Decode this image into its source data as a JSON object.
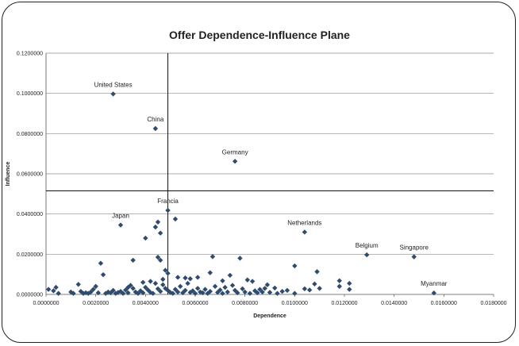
{
  "chart_data": {
    "type": "scatter",
    "title": "Offer Dependence-Influence Plane",
    "xlabel": "Dependence",
    "ylabel": "Influence",
    "xlim": [
      0,
      0.018
    ],
    "ylim": [
      0,
      0.12
    ],
    "x_ticks": [
      "0.0000000",
      "0.0020000",
      "0.0040000",
      "0.0060000",
      "0.0080000",
      "0.0100000",
      "0.0120000",
      "0.0140000",
      "0.0160000",
      "0.0180000"
    ],
    "y_ticks": [
      "0.0000000",
      "0.0200000",
      "0.0400000",
      "0.0600000",
      "0.0800000",
      "0.1000000",
      "0.1200000"
    ],
    "grid": "horizontal",
    "reference_lines": {
      "x": 0.0049,
      "y": 0.0515
    },
    "marker_color": "#2f4b6e",
    "labeled_points": [
      {
        "label": "United States",
        "x": 0.0027,
        "y": 0.0997
      },
      {
        "label": "China",
        "x": 0.0044,
        "y": 0.0825
      },
      {
        "label": "Germany",
        "x": 0.0076,
        "y": 0.0662
      },
      {
        "label": "Japan",
        "x": 0.003,
        "y": 0.0345
      },
      {
        "label": "Francia",
        "x": 0.0049,
        "y": 0.0418
      },
      {
        "label": "Netherlands",
        "x": 0.0104,
        "y": 0.031
      },
      {
        "label": "Belgium",
        "x": 0.0129,
        "y": 0.0197
      },
      {
        "label": "Singapore",
        "x": 0.0148,
        "y": 0.0187
      },
      {
        "label": "Myanmar",
        "x": 0.0156,
        "y": 0.0007
      }
    ],
    "points": [
      [
        0.0052,
        0.0375
      ],
      [
        0.0045,
        0.036
      ],
      [
        0.0044,
        0.0335
      ],
      [
        0.0046,
        0.0305
      ],
      [
        0.004,
        0.028
      ],
      [
        0.0022,
        0.0155
      ],
      [
        0.0023,
        0.0098
      ],
      [
        0.0035,
        0.017
      ],
      [
        0.0045,
        0.0185
      ],
      [
        0.0046,
        0.017
      ],
      [
        0.0048,
        0.012
      ],
      [
        0.0049,
        0.0105
      ],
      [
        0.0053,
        0.0085
      ],
      [
        0.0056,
        0.0082
      ],
      [
        0.0058,
        0.0078
      ],
      [
        0.0067,
        0.0188
      ],
      [
        0.0078,
        0.018
      ],
      [
        0.0066,
        0.0108
      ],
      [
        0.0074,
        0.0095
      ],
      [
        0.0081,
        0.0072
      ],
      [
        0.0083,
        0.0065
      ],
      [
        0.01,
        0.0142
      ],
      [
        0.0109,
        0.0113
      ],
      [
        0.0108,
        0.0052
      ],
      [
        0.011,
        0.003
      ],
      [
        0.0118,
        0.0068
      ],
      [
        0.0118,
        0.004
      ],
      [
        0.0122,
        0.0055
      ],
      [
        0.0122,
        0.0025
      ],
      [
        0.0089,
        0.0048
      ],
      [
        0.0092,
        0.0032
      ],
      [
        0.0104,
        0.0028
      ],
      [
        0.0106,
        0.0022
      ],
      [
        0.01,
        0.0005
      ],
      [
        0.0095,
        0.0015
      ],
      [
        0.0001,
        0.0025
      ],
      [
        0.0003,
        0.0018
      ],
      [
        0.0004,
        0.0035
      ],
      [
        0.0005,
        0.0005
      ],
      [
        0.001,
        0.0012
      ],
      [
        0.0011,
        0.0005
      ],
      [
        0.0013,
        0.005
      ],
      [
        0.0014,
        0.0015
      ],
      [
        0.0015,
        0.0005
      ],
      [
        0.0016,
        0.0008
      ],
      [
        0.0017,
        0.0005
      ],
      [
        0.0018,
        0.0012
      ],
      [
        0.0019,
        0.0025
      ],
      [
        0.002,
        0.004
      ],
      [
        0.0021,
        0.0008
      ],
      [
        0.0024,
        0.0005
      ],
      [
        0.0025,
        0.0012
      ],
      [
        0.0026,
        0.0008
      ],
      [
        0.0027,
        0.002
      ],
      [
        0.0028,
        0.0005
      ],
      [
        0.0029,
        0.001
      ],
      [
        0.003,
        0.0015
      ],
      [
        0.0031,
        0.0005
      ],
      [
        0.0032,
        0.0022
      ],
      [
        0.0033,
        0.0008
      ],
      [
        0.0034,
        0.0045
      ],
      [
        0.0035,
        0.003
      ],
      [
        0.0036,
        0.0012
      ],
      [
        0.0037,
        0.0005
      ],
      [
        0.0038,
        0.0018
      ],
      [
        0.0039,
        0.0008
      ],
      [
        0.004,
        0.0035
      ],
      [
        0.0041,
        0.0022
      ],
      [
        0.0042,
        0.001
      ],
      [
        0.0043,
        0.0005
      ],
      [
        0.0044,
        0.0055
      ],
      [
        0.0045,
        0.0028
      ],
      [
        0.0046,
        0.0015
      ],
      [
        0.0047,
        0.0048
      ],
      [
        0.0048,
        0.003
      ],
      [
        0.0049,
        0.002
      ],
      [
        0.005,
        0.001
      ],
      [
        0.0051,
        0.0005
      ],
      [
        0.0052,
        0.0025
      ],
      [
        0.0053,
        0.0012
      ],
      [
        0.0054,
        0.004
      ],
      [
        0.0055,
        0.0008
      ],
      [
        0.0056,
        0.002
      ],
      [
        0.0057,
        0.0055
      ],
      [
        0.0058,
        0.001
      ],
      [
        0.0059,
        0.0018
      ],
      [
        0.006,
        0.0005
      ],
      [
        0.0061,
        0.003
      ],
      [
        0.0062,
        0.0012
      ],
      [
        0.0063,
        0.0008
      ],
      [
        0.0064,
        0.0025
      ],
      [
        0.0065,
        0.0005
      ],
      [
        0.0066,
        0.0015
      ],
      [
        0.0068,
        0.004
      ],
      [
        0.0069,
        0.001
      ],
      [
        0.007,
        0.0022
      ],
      [
        0.0071,
        0.0005
      ],
      [
        0.0072,
        0.0035
      ],
      [
        0.0073,
        0.0012
      ],
      [
        0.0075,
        0.0045
      ],
      [
        0.0076,
        0.002
      ],
      [
        0.0077,
        0.0008
      ],
      [
        0.0079,
        0.0028
      ],
      [
        0.008,
        0.0012
      ],
      [
        0.0082,
        0.0005
      ],
      [
        0.0084,
        0.0018
      ],
      [
        0.0085,
        0.0008
      ],
      [
        0.0086,
        0.0025
      ],
      [
        0.0087,
        0.0012
      ],
      [
        0.0088,
        0.003
      ],
      [
        0.009,
        0.001
      ],
      [
        0.0093,
        0.0005
      ],
      [
        0.0097,
        0.002
      ],
      [
        0.0039,
        0.006
      ],
      [
        0.0042,
        0.0065
      ],
      [
        0.0061,
        0.0085
      ],
      [
        0.0071,
        0.0068
      ],
      [
        0.0033,
        0.0035
      ],
      [
        0.0047,
        0.0075
      ]
    ]
  }
}
